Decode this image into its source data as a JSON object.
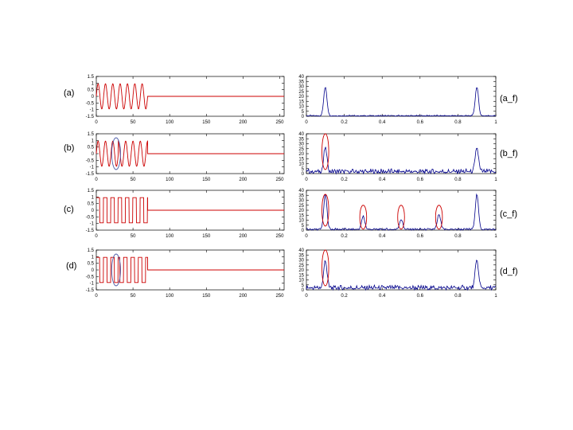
{
  "colors": {
    "time_signal": "#cc0000",
    "spectrum": "#00008b",
    "marker_blue": "#4a5aa8",
    "marker_red": "#cc0000"
  },
  "chart_data": [
    {
      "type": "line",
      "panel": "a",
      "label": "(a)",
      "signal": "sine",
      "active_until": 70,
      "xlim": [
        0,
        256
      ],
      "ylim": [
        -1.5,
        1.5
      ],
      "xticks": [
        "0",
        "50",
        "100",
        "150",
        "200",
        "250"
      ],
      "yticks": [
        "1.5",
        "1",
        "0.5",
        "0",
        "-0.5",
        "-1",
        "-1.5"
      ]
    },
    {
      "type": "line",
      "panel": "a_f",
      "label": "(a_f)",
      "peaks": [
        {
          "x": 0.1,
          "y": 29
        },
        {
          "x": 0.9,
          "y": 29
        }
      ],
      "xlim": [
        0,
        1
      ],
      "ylim": [
        0,
        40
      ],
      "xticks": [
        "0",
        "0.2",
        "0.4",
        "0.6",
        "0.8",
        "1"
      ],
      "yticks": [
        "40",
        "35",
        "30",
        "25",
        "20",
        "15",
        "10",
        "5",
        "0"
      ]
    },
    {
      "type": "line",
      "panel": "b",
      "label": "(b)",
      "signal": "sine_phase_jump",
      "active_until": 70,
      "xlim": [
        0,
        256
      ],
      "ylim": [
        -1.5,
        1.5
      ],
      "xticks": [
        "0",
        "50",
        "100",
        "150",
        "200",
        "250"
      ],
      "yticks": [
        "1.5",
        "1",
        "0.5",
        "0",
        "-0.5",
        "-1",
        "-1.5"
      ]
    },
    {
      "type": "line",
      "panel": "b_f",
      "label": "(b_f)",
      "peaks": [
        {
          "x": 0.1,
          "y": 24
        },
        {
          "x": 0.9,
          "y": 24
        }
      ],
      "xlim": [
        0,
        1
      ],
      "ylim": [
        0,
        40
      ],
      "xticks": [
        "0",
        "0.2",
        "0.4",
        "0.6",
        "0.8",
        "1"
      ],
      "yticks": [
        "40",
        "35",
        "30",
        "25",
        "20",
        "15",
        "10",
        "5",
        "0"
      ]
    },
    {
      "type": "line",
      "panel": "c",
      "label": "(c)",
      "signal": "square",
      "active_until": 70,
      "xlim": [
        0,
        256
      ],
      "ylim": [
        -1.5,
        1.5
      ],
      "xticks": [
        "0",
        "50",
        "100",
        "150",
        "200",
        "250"
      ],
      "yticks": [
        "1.5",
        "1",
        "0.5",
        "0",
        "-0.5",
        "-1",
        "-1.5"
      ]
    },
    {
      "type": "line",
      "panel": "c_f",
      "label": "(c_f)",
      "peaks": [
        {
          "x": 0.1,
          "y": 35
        },
        {
          "x": 0.3,
          "y": 13
        },
        {
          "x": 0.5,
          "y": 10
        },
        {
          "x": 0.7,
          "y": 15
        },
        {
          "x": 0.9,
          "y": 35
        }
      ],
      "xlim": [
        0,
        1
      ],
      "ylim": [
        0,
        40
      ],
      "xticks": [
        "0",
        "0.2",
        "0.4",
        "0.6",
        "0.8",
        "1"
      ],
      "yticks": [
        "40",
        "35",
        "30",
        "25",
        "20",
        "15",
        "10",
        "5",
        "0"
      ]
    },
    {
      "type": "line",
      "panel": "d",
      "label": "(d)",
      "signal": "square_phase_jump",
      "active_until": 70,
      "xlim": [
        0,
        256
      ],
      "ylim": [
        -1.5,
        1.5
      ],
      "xticks": [
        "0",
        "50",
        "100",
        "150",
        "200",
        "250"
      ],
      "yticks": [
        "1.5",
        "1",
        "0.5",
        "0",
        "-0.5",
        "-1",
        "-1.5"
      ]
    },
    {
      "type": "line",
      "panel": "d_f",
      "label": "(d_f)",
      "peaks": [
        {
          "x": 0.1,
          "y": 28
        },
        {
          "x": 0.9,
          "y": 28
        }
      ],
      "xlim": [
        0,
        1
      ],
      "ylim": [
        0,
        40
      ],
      "xticks": [
        "0",
        "0.2",
        "0.4",
        "0.6",
        "0.8",
        "1"
      ],
      "yticks": [
        "40",
        "35",
        "30",
        "25",
        "20",
        "15",
        "10",
        "5",
        "0"
      ]
    }
  ]
}
